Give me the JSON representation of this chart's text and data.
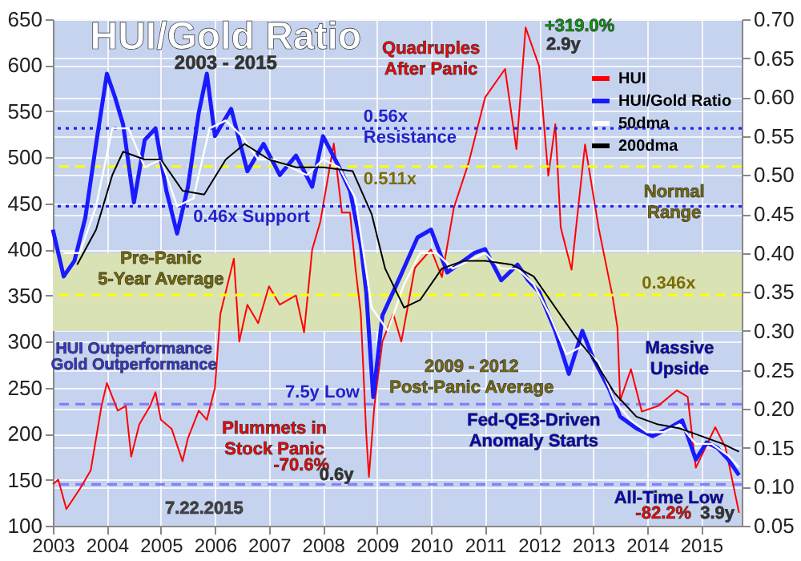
{
  "chart_data": {
    "type": "line",
    "title": "HUI/Gold Ratio",
    "subtitle": "2003 - 2015",
    "xlim": [
      2003,
      2015.75
    ],
    "xticks": [
      2003,
      2004,
      2005,
      2006,
      2007,
      2008,
      2009,
      2010,
      2011,
      2012,
      2013,
      2014,
      2015
    ],
    "ylim": [
      100,
      650
    ],
    "yticks": [
      100,
      150,
      200,
      250,
      300,
      350,
      400,
      450,
      500,
      550,
      600,
      650
    ],
    "y2lim": [
      0.05,
      0.7
    ],
    "y2ticks": [
      {
        "value": 0.05,
        "label": "0.05"
      },
      {
        "value": 0.1,
        "label": "0.10"
      },
      {
        "value": 0.15,
        "label": "0.15"
      },
      {
        "value": 0.2,
        "label": "0.20"
      },
      {
        "value": 0.25,
        "label": "0.25"
      },
      {
        "value": 0.3,
        "label": "0.30"
      },
      {
        "value": 0.35,
        "label": "0.35"
      },
      {
        "value": 0.4,
        "label": "0.40"
      },
      {
        "value": 0.45,
        "label": "0.45"
      },
      {
        "value": 0.5,
        "label": "0.50"
      },
      {
        "value": 0.55,
        "label": "0.55"
      },
      {
        "value": 0.6,
        "label": "0.60"
      },
      {
        "value": 0.65,
        "label": "0.65"
      },
      {
        "value": 0.7,
        "label": "0.70"
      }
    ],
    "grid": true,
    "legend": "top right",
    "series": [
      {
        "name": "HUI",
        "color": "#ff0000",
        "axis": "y",
        "x": [
          2003.0,
          2003.1,
          2003.25,
          2003.5,
          2003.7,
          2003.9,
          2004.0,
          2004.2,
          2004.35,
          2004.45,
          2004.6,
          2004.8,
          2004.9,
          2005.0,
          2005.2,
          2005.4,
          2005.5,
          2005.7,
          2005.85,
          2006.0,
          2006.1,
          2006.35,
          2006.45,
          2006.6,
          2006.8,
          2007.0,
          2007.2,
          2007.5,
          2007.65,
          2007.8,
          2007.95,
          2008.2,
          2008.35,
          2008.5,
          2008.6,
          2008.7,
          2008.8,
          2008.85,
          2008.95,
          2009.1,
          2009.3,
          2009.45,
          2009.7,
          2010.0,
          2010.2,
          2010.42,
          2010.7,
          2011.0,
          2011.37,
          2011.58,
          2011.75,
          2012.0,
          2012.17,
          2012.3,
          2012.4,
          2012.6,
          2012.85,
          2013.1,
          2013.3,
          2013.36,
          2013.45,
          2013.5,
          2013.7,
          2013.9,
          2014.2,
          2014.55,
          2014.75,
          2014.9,
          2015.26,
          2015.45,
          2015.7
        ],
        "values": [
          145,
          150,
          118,
          140,
          160,
          230,
          255,
          225,
          230,
          175,
          210,
          230,
          245,
          215,
          205,
          170,
          195,
          225,
          215,
          250,
          330,
          390,
          300,
          340,
          320,
          360,
          340,
          350,
          310,
          400,
          430,
          515,
          440,
          440,
          380,
          330,
          200,
          153,
          230,
          300,
          330,
          300,
          380,
          400,
          370,
          445,
          495,
          565,
          596,
          509,
          641,
          599,
          480,
          536,
          424,
          378,
          514,
          424,
          366,
          349,
          315,
          236,
          270,
          224,
          230,
          247,
          240,
          163,
          207,
          185,
          114
        ]
      },
      {
        "name": "HUI/Gold Ratio",
        "color": "#1a1aff",
        "axis": "y2",
        "x": [
          2003.0,
          2003.2,
          2003.4,
          2003.6,
          2003.8,
          2004.0,
          2004.15,
          2004.3,
          2004.5,
          2004.7,
          2004.9,
          2005.1,
          2005.3,
          2005.5,
          2005.7,
          2005.85,
          2006.0,
          2006.3,
          2006.6,
          2006.9,
          2007.2,
          2007.5,
          2007.8,
          2008.0,
          2008.3,
          2008.5,
          2008.7,
          2008.8,
          2008.93,
          2009.1,
          2009.43,
          2009.75,
          2010.0,
          2010.3,
          2010.8,
          2011.0,
          2011.3,
          2011.6,
          2011.8,
          2012.0,
          2012.3,
          2012.55,
          2012.8,
          2013.0,
          2013.3,
          2013.5,
          2013.8,
          2014.1,
          2014.4,
          2014.65,
          2014.9,
          2015.1,
          2015.3,
          2015.5,
          2015.7
        ],
        "values": [
          0.43,
          0.37,
          0.39,
          0.445,
          0.54,
          0.63,
          0.6,
          0.565,
          0.465,
          0.545,
          0.56,
          0.48,
          0.425,
          0.485,
          0.58,
          0.63,
          0.55,
          0.585,
          0.505,
          0.54,
          0.5,
          0.525,
          0.485,
          0.55,
          0.51,
          0.48,
          0.41,
          0.35,
          0.215,
          0.32,
          0.37,
          0.42,
          0.43,
          0.375,
          0.4,
          0.405,
          0.365,
          0.385,
          0.365,
          0.35,
          0.3,
          0.245,
          0.3,
          0.265,
          0.225,
          0.19,
          0.175,
          0.165,
          0.175,
          0.185,
          0.135,
          0.157,
          0.15,
          0.135,
          0.115
        ]
      },
      {
        "name": "50dma",
        "color": "#ffffff",
        "axis": "y2",
        "x": [
          2003.2,
          2003.5,
          2003.8,
          2004.1,
          2004.4,
          2004.7,
          2005.0,
          2005.3,
          2005.6,
          2005.9,
          2006.2,
          2006.5,
          2006.8,
          2007.1,
          2007.4,
          2007.7,
          2008.0,
          2008.3,
          2008.6,
          2008.9,
          2009.2,
          2009.5,
          2009.8,
          2010.1,
          2010.4,
          2010.7,
          2011.0,
          2011.3,
          2011.6,
          2011.9,
          2012.2,
          2012.5,
          2012.8,
          2013.1,
          2013.4,
          2013.7,
          2014.0,
          2014.3,
          2014.6,
          2014.9,
          2015.2,
          2015.5,
          2015.7
        ],
        "values": [
          0.4,
          0.4,
          0.46,
          0.56,
          0.56,
          0.51,
          0.52,
          0.46,
          0.47,
          0.56,
          0.57,
          0.55,
          0.52,
          0.52,
          0.51,
          0.5,
          0.52,
          0.51,
          0.47,
          0.33,
          0.3,
          0.36,
          0.4,
          0.4,
          0.38,
          0.39,
          0.4,
          0.38,
          0.38,
          0.36,
          0.32,
          0.27,
          0.28,
          0.26,
          0.21,
          0.185,
          0.17,
          0.17,
          0.18,
          0.155,
          0.155,
          0.14,
          0.125
        ]
      },
      {
        "name": "200dma",
        "color": "#000000",
        "axis": "y2",
        "x": [
          2003.45,
          2003.8,
          2004.1,
          2004.3,
          2004.7,
          2005.0,
          2005.4,
          2005.8,
          2006.2,
          2006.55,
          2007.0,
          2007.5,
          2008.0,
          2008.55,
          2008.9,
          2009.15,
          2009.5,
          2009.8,
          2010.2,
          2010.6,
          2011.0,
          2011.5,
          2011.9,
          2012.3,
          2012.7,
          2013.0,
          2013.4,
          2013.8,
          2014.2,
          2014.6,
          2015.0,
          2015.4,
          2015.7
        ],
        "values": [
          0.385,
          0.43,
          0.5,
          0.53,
          0.52,
          0.52,
          0.48,
          0.475,
          0.52,
          0.54,
          0.52,
          0.51,
          0.51,
          0.505,
          0.45,
          0.38,
          0.33,
          0.34,
          0.38,
          0.39,
          0.39,
          0.385,
          0.37,
          0.33,
          0.29,
          0.265,
          0.22,
          0.19,
          0.18,
          0.175,
          0.165,
          0.155,
          0.145
        ]
      }
    ],
    "ref_lines": [
      {
        "axis": "y2",
        "value": 0.56,
        "label": "0.56x  Resistance",
        "color": "#2222ee",
        "line_style": "dotted"
      },
      {
        "axis": "y2",
        "value": 0.46,
        "label": "0.46x  Support",
        "color": "#2222ee",
        "line_style": "dotted"
      },
      {
        "axis": "y2",
        "value": 0.511,
        "label": "0.511x",
        "color": "#ffff00",
        "line_style": "dashed"
      },
      {
        "axis": "y2",
        "value": 0.346,
        "label": "0.346x",
        "color": "#ffff00",
        "line_style": "dashed"
      },
      {
        "axis": "y",
        "value": 232,
        "label": "7.5y Low",
        "color": "#8080ff",
        "line_style": "dashed"
      },
      {
        "axis": "y",
        "value": 145,
        "color": "#8080ff",
        "line_style": "dashed"
      }
    ],
    "bands": [
      {
        "axis": "y2",
        "from": 0.3,
        "to": 0.4,
        "label": "Normal Range",
        "color": "#d9e2b5"
      }
    ],
    "annotations": [
      "Pre-Panic 5-Year Average",
      "Quadruples After Panic",
      "+319.0%",
      "2.9y",
      "HUI Outperformance",
      "Gold Outperformance",
      "Plummets in Stock Panic",
      "-70.6%",
      "0.6y",
      "7.22.2015",
      "2009 - 2012 Post-Panic Average",
      "Fed-QE3-Driven Anomaly Starts",
      "Massive Upside",
      "All-Time Low",
      "-82.2%",
      "3.9y"
    ]
  }
}
